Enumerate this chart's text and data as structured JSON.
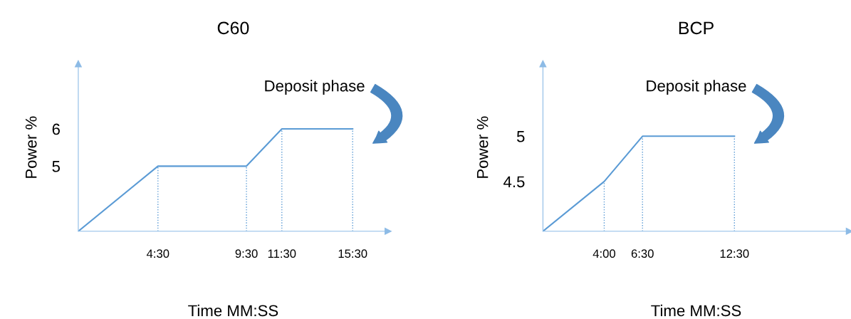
{
  "chart_data": [
    {
      "type": "line",
      "title": "C60",
      "xlabel": "Time MM:SS",
      "ylabel": "Power %",
      "series": [
        {
          "color": "#5b9bd5",
          "x": [
            0,
            4.5,
            9.5,
            11.5,
            15.5
          ],
          "values": [
            3.25,
            5,
            5,
            6,
            6
          ]
        }
      ],
      "xlim": [
        0,
        17.5
      ],
      "ylim": [
        3.25,
        7.75
      ],
      "xticks": [
        {
          "value": 4.5,
          "label": "4:30"
        },
        {
          "value": 9.5,
          "label": "9:30"
        },
        {
          "value": 11.5,
          "label": "11:30"
        },
        {
          "value": 15.5,
          "label": "15:30"
        }
      ],
      "yticks": [
        5,
        6
      ],
      "ref_lines": [
        {
          "axis": "x",
          "value": 4.5,
          "color": "#5b9bd5",
          "line_style": "dotted"
        },
        {
          "axis": "x",
          "value": 9.5,
          "color": "#5b9bd5",
          "line_style": "dotted"
        },
        {
          "axis": "x",
          "value": 11.5,
          "color": "#5b9bd5",
          "line_style": "dotted"
        },
        {
          "axis": "x",
          "value": 15.5,
          "color": "#5b9bd5",
          "line_style": "dotted"
        }
      ],
      "annotations": [
        "Deposit phase"
      ],
      "grid": false,
      "legend": false,
      "marker": "none",
      "line_style": "solid"
    },
    {
      "type": "line",
      "title": "BCP",
      "xlabel": "Time MM:SS",
      "ylabel": "Power %",
      "series": [
        {
          "color": "#5b9bd5",
          "x": [
            0,
            4,
            6.5,
            12.5
          ],
          "values": [
            3.95,
            4.5,
            5,
            5
          ]
        }
      ],
      "xlim": [
        0,
        20
      ],
      "ylim": [
        3.95,
        5.8
      ],
      "xticks": [
        {
          "value": 4,
          "label": "4:00"
        },
        {
          "value": 6.5,
          "label": "6:30"
        },
        {
          "value": 12.5,
          "label": "12:30"
        }
      ],
      "yticks": [
        4.5,
        5
      ],
      "ref_lines": [
        {
          "axis": "x",
          "value": 4,
          "color": "#5b9bd5",
          "line_style": "dotted"
        },
        {
          "axis": "x",
          "value": 6.5,
          "color": "#5b9bd5",
          "line_style": "dotted"
        },
        {
          "axis": "x",
          "value": 12.5,
          "color": "#5b9bd5",
          "line_style": "dotted"
        }
      ],
      "annotations": [
        "Deposit phase"
      ],
      "grid": false,
      "legend": false,
      "marker": "none",
      "line_style": "solid"
    }
  ]
}
